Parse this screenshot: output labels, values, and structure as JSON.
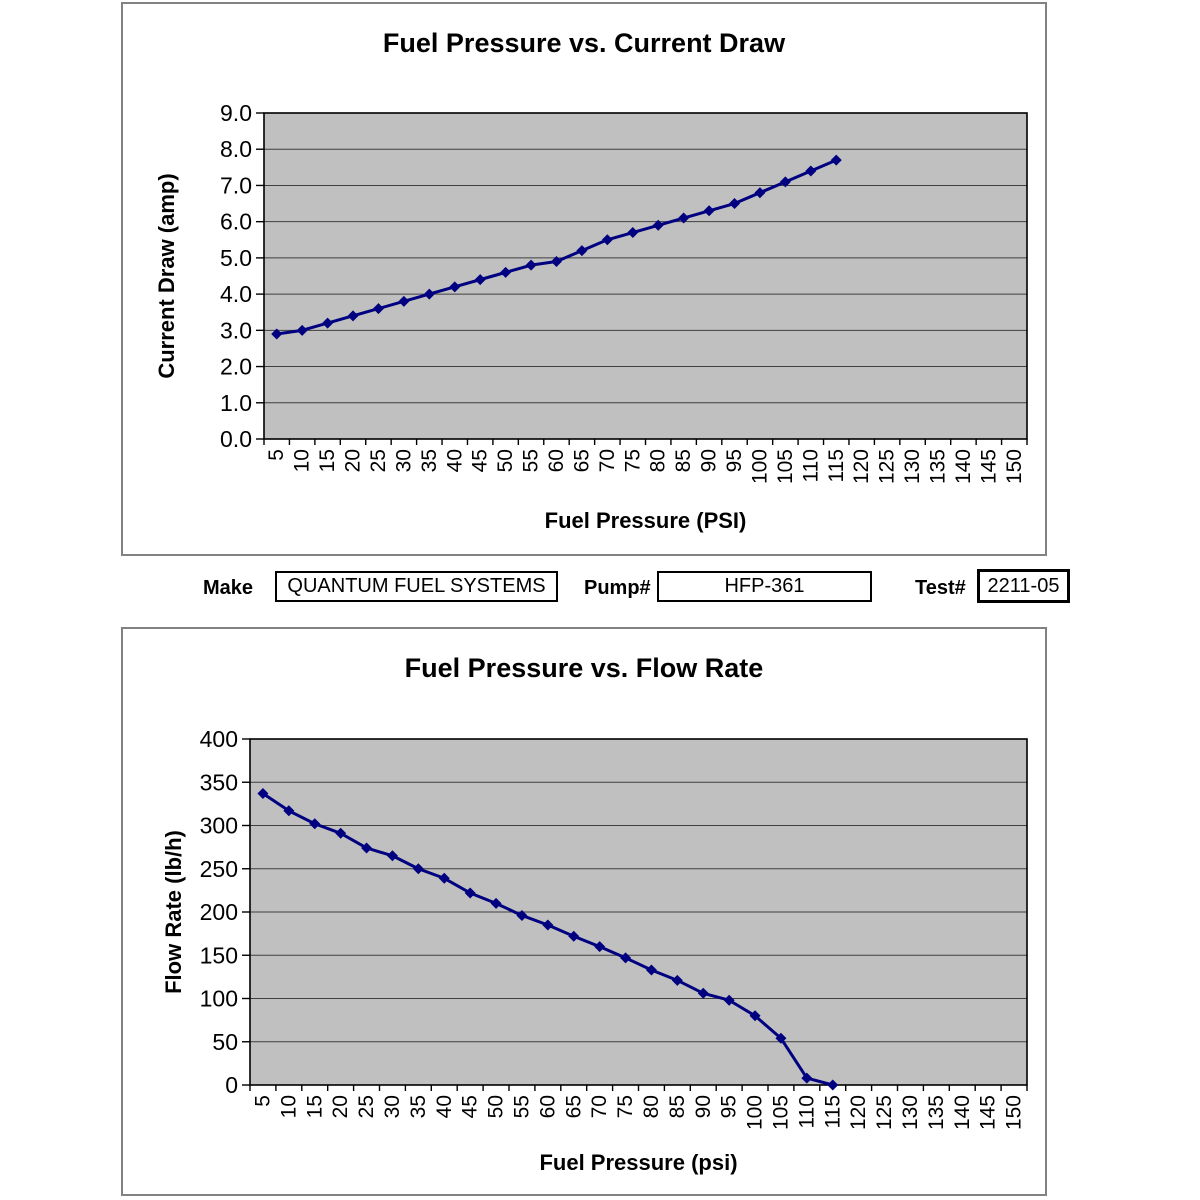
{
  "form": {
    "make": {
      "label": "Make",
      "value": "QUANTUM FUEL SYSTEMS"
    },
    "pump": {
      "label": "Pump#",
      "value": "HFP-361"
    },
    "test": {
      "label": "Test#",
      "value": "2211-05"
    }
  },
  "chart_data": [
    {
      "type": "line",
      "title": "Fuel Pressure vs. Current Draw",
      "xlabel": "Fuel Pressure (PSI)",
      "ylabel": "Current Draw (amp)",
      "x_ticks": [
        "5",
        "10",
        "15",
        "20",
        "25",
        "30",
        "35",
        "40",
        "45",
        "50",
        "55",
        "60",
        "65",
        "70",
        "75",
        "80",
        "85",
        "90",
        "95",
        "100",
        "105",
        "110",
        "115",
        "120",
        "125",
        "130",
        "135",
        "140",
        "145",
        "150"
      ],
      "x": [
        5,
        10,
        15,
        20,
        25,
        30,
        35,
        40,
        45,
        50,
        55,
        60,
        65,
        70,
        75,
        80,
        85,
        90,
        95,
        100,
        105,
        110,
        115
      ],
      "series": [
        {
          "name": "Current Draw",
          "values": [
            2.9,
            3.0,
            3.2,
            3.4,
            3.6,
            3.8,
            4.0,
            4.2,
            4.4,
            4.6,
            4.8,
            4.9,
            5.2,
            5.5,
            5.7,
            5.9,
            6.1,
            6.3,
            6.5,
            6.8,
            7.1,
            7.4,
            7.7
          ]
        }
      ],
      "ylim": [
        0,
        9
      ],
      "y_tick_labels": [
        "0.0",
        "1.0",
        "2.0",
        "3.0",
        "4.0",
        "5.0",
        "6.0",
        "7.0",
        "8.0",
        "9.0"
      ],
      "grid": true,
      "legend": "none",
      "marker": "diamond",
      "line_color": "#000080",
      "plot_bg": "#C0C0C0",
      "grid_color": "#3f3f3f"
    },
    {
      "type": "line",
      "title": "Fuel Pressure vs. Flow Rate",
      "xlabel": "Fuel Pressure (psi)",
      "ylabel": "Flow Rate (lb/h)",
      "x_ticks": [
        "5",
        "10",
        "15",
        "20",
        "25",
        "30",
        "35",
        "40",
        "45",
        "50",
        "55",
        "60",
        "65",
        "70",
        "75",
        "80",
        "85",
        "90",
        "95",
        "100",
        "105",
        "110",
        "115",
        "120",
        "125",
        "130",
        "135",
        "140",
        "145",
        "150"
      ],
      "x": [
        5,
        10,
        15,
        20,
        25,
        30,
        35,
        40,
        45,
        50,
        55,
        60,
        65,
        70,
        75,
        80,
        85,
        90,
        95,
        100,
        105,
        110,
        115
      ],
      "series": [
        {
          "name": "Flow Rate",
          "values": [
            337,
            317,
            302,
            291,
            274,
            265,
            250,
            239,
            222,
            210,
            196,
            185,
            172,
            160,
            147,
            133,
            121,
            106,
            98,
            80,
            54,
            8,
            0
          ]
        }
      ],
      "ylim": [
        0,
        400
      ],
      "y_tick_labels": [
        "0",
        "50",
        "100",
        "150",
        "200",
        "250",
        "300",
        "350",
        "400"
      ],
      "grid": true,
      "legend": "none",
      "marker": "diamond",
      "line_color": "#000080",
      "plot_bg": "#C0C0C0",
      "grid_color": "#3f3f3f"
    }
  ]
}
